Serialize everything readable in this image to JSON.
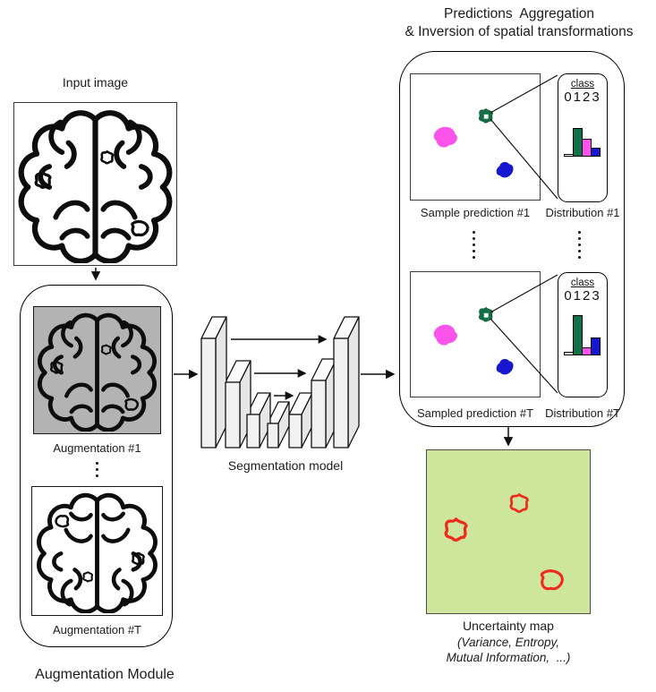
{
  "diagram": {
    "input": {
      "label": "Input image"
    },
    "augmentation_module": {
      "label": "Augmentation Module",
      "items": [
        {
          "label": "Augmentation #1"
        },
        {
          "label": "Augmentation #T"
        }
      ]
    },
    "segmentation_model": {
      "label": "Segmentation model"
    },
    "aggregation_panel": {
      "title_line1": "Predictions  Aggregation",
      "title_line2": "& Inversion of spatial transformations",
      "rows": [
        {
          "prediction_label": "Sample prediction #1",
          "distribution_label": "Distribution #1",
          "class_header": "class",
          "class_values": "0123",
          "bars": [
            {
              "class": "0",
              "color": "#ffffff",
              "h": 3
            },
            {
              "class": "1",
              "color": "#10714a",
              "h": 32
            },
            {
              "class": "2",
              "color": "#f953ec",
              "h": 20
            },
            {
              "class": "3",
              "color": "#1717cf",
              "h": 10
            }
          ]
        },
        {
          "prediction_label": "Sampled prediction #T",
          "distribution_label": "Distribution #T",
          "class_header": "class",
          "class_values": "0123",
          "bars": [
            {
              "class": "0",
              "color": "#ffffff",
              "h": 4
            },
            {
              "class": "1",
              "color": "#10714a",
              "h": 45
            },
            {
              "class": "2",
              "color": "#f953ec",
              "h": 9
            },
            {
              "class": "3",
              "color": "#1717cf",
              "h": 20
            }
          ]
        }
      ]
    },
    "uncertainty_map": {
      "label": "Uncertainty map",
      "sublabel_line1": "(Variance, Entropy,",
      "sublabel_line2": "Mutual Information,  ...)"
    }
  },
  "chart_data": [
    {
      "type": "bar",
      "title": "Distribution #1",
      "xlabel": "class",
      "categories": [
        "0",
        "1",
        "2",
        "3"
      ],
      "values": [
        0.06,
        0.64,
        0.4,
        0.2
      ],
      "colors": [
        "#ffffff",
        "#10714a",
        "#f953ec",
        "#1717cf"
      ],
      "legend": false
    },
    {
      "type": "bar",
      "title": "Distribution #T",
      "xlabel": "class",
      "categories": [
        "0",
        "1",
        "2",
        "3"
      ],
      "values": [
        0.08,
        0.9,
        0.18,
        0.4
      ],
      "colors": [
        "#ffffff",
        "#10714a",
        "#f953ec",
        "#1717cf"
      ],
      "legend": false
    }
  ],
  "colors": {
    "augmented_image_bg": "#b3b3b3",
    "uncertainty_map_bg": "#cde69b",
    "uncertainty_outline_red": "#ee2a1e",
    "class1_green": "#10714a",
    "class2_magenta": "#f953ec",
    "class3_blue": "#1717cf",
    "unet_block_fill": "#f1f1f1",
    "line_black": "#111111"
  }
}
